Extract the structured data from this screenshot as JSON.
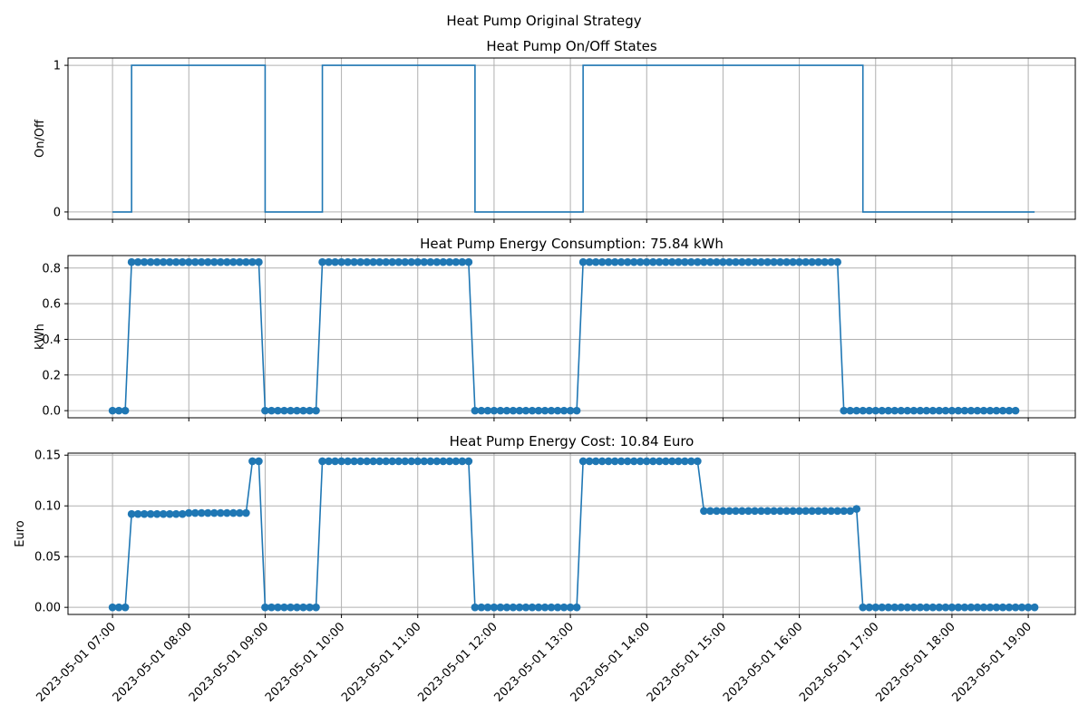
{
  "figure": {
    "suptitle": "Heat Pump Original Strategy"
  },
  "accent_color": "#1f77b4",
  "chart_data": [
    {
      "type": "line",
      "step": true,
      "markers": false,
      "title": "Heat Pump On/Off States",
      "xlabel": "",
      "ylabel": "On/Off",
      "ylim": [
        -0.05,
        1.05
      ],
      "y_ticks": [
        0,
        1
      ],
      "y_tick_labels": [
        "0",
        "1"
      ],
      "grid": true,
      "x_unit": "15 min interval",
      "x_start": "2023-05-01 07:00",
      "values": [
        0,
        0,
        0,
        1,
        1,
        1,
        1,
        1,
        1,
        1,
        1,
        1,
        1,
        1,
        1,
        1,
        1,
        1,
        1,
        1,
        1,
        1,
        1,
        1,
        0,
        0,
        0,
        0,
        0,
        0,
        0,
        0,
        0,
        1,
        1,
        1,
        1,
        1,
        1,
        1,
        1,
        1,
        1,
        1,
        1,
        1,
        1,
        1,
        1,
        1,
        1,
        1,
        1,
        1,
        1,
        1,
        1,
        0,
        0,
        0,
        0,
        0,
        0,
        0,
        0,
        0,
        0,
        0,
        0,
        0,
        0,
        0,
        0,
        0,
        1,
        1,
        1,
        1,
        1,
        1,
        1,
        1,
        1,
        1,
        1,
        1,
        1,
        1,
        1,
        1,
        1,
        1,
        1,
        1,
        1,
        1,
        1,
        1,
        1,
        1,
        1,
        1,
        1,
        1,
        1,
        1,
        1,
        1,
        1,
        1,
        1,
        1,
        1,
        1,
        1,
        1,
        1,
        1,
        0,
        0,
        0,
        0,
        0,
        0,
        0,
        0,
        0,
        0,
        0,
        0,
        0,
        0,
        0,
        0,
        0,
        0,
        0,
        0,
        0,
        0,
        0,
        0,
        0,
        0,
        0,
        0
      ]
    },
    {
      "type": "line",
      "markers": true,
      "title": "Heat Pump Energy Consumption: 75.84 kWh",
      "xlabel": "",
      "ylabel": "kWh",
      "ylim": [
        -0.04,
        0.87
      ],
      "y_ticks": [
        0.0,
        0.2,
        0.4,
        0.6,
        0.8
      ],
      "y_tick_labels": [
        "0.0",
        "0.2",
        "0.4",
        "0.6",
        "0.8"
      ],
      "grid": true,
      "x_start": "2023-05-01 07:00",
      "values": [
        0,
        0,
        0,
        0.8333,
        0.8333,
        0.8333,
        0.8333,
        0.8333,
        0.8333,
        0.8333,
        0.8333,
        0.8333,
        0.8333,
        0.8333,
        0.8333,
        0.8333,
        0.8333,
        0.8333,
        0.8333,
        0.8333,
        0.8333,
        0.8333,
        0.8333,
        0.8333,
        0,
        0,
        0,
        0,
        0,
        0,
        0,
        0,
        0,
        0.8333,
        0.8333,
        0.8333,
        0.8333,
        0.8333,
        0.8333,
        0.8333,
        0.8333,
        0.8333,
        0.8333,
        0.8333,
        0.8333,
        0.8333,
        0.8333,
        0.8333,
        0.8333,
        0.8333,
        0.8333,
        0.8333,
        0.8333,
        0.8333,
        0.8333,
        0.8333,
        0.8333,
        0,
        0,
        0,
        0,
        0,
        0,
        0,
        0,
        0,
        0,
        0,
        0,
        0,
        0,
        0,
        0,
        0,
        0.8333,
        0.8333,
        0.8333,
        0.8333,
        0.8333,
        0.8333,
        0.8333,
        0.8333,
        0.8333,
        0.8333,
        0.8333,
        0.8333,
        0.8333,
        0.8333,
        0.8333,
        0.8333,
        0.8333,
        0.8333,
        0.8333,
        0.8333,
        0.8333,
        0.8333,
        0.8333,
        0.8333,
        0.8333,
        0.8333,
        0.8333,
        0.8333,
        0.8333,
        0.8333,
        0.8333,
        0.8333,
        0.8333,
        0.8333,
        0.8333,
        0.8333,
        0.8333,
        0.8333,
        0.8333,
        0.8333,
        0.8333,
        0,
        0,
        0,
        0,
        0,
        0,
        0,
        0,
        0,
        0,
        0,
        0,
        0,
        0,
        0,
        0,
        0,
        0,
        0,
        0,
        0,
        0,
        0,
        0,
        0,
        0,
        0,
        0
      ]
    },
    {
      "type": "line",
      "markers": true,
      "title": "Heat Pump Energy Cost: 10.84 Euro",
      "xlabel": "",
      "ylabel": "Euro",
      "ylim": [
        -0.007,
        0.152
      ],
      "y_ticks": [
        0.0,
        0.05,
        0.1,
        0.15
      ],
      "y_tick_labels": [
        "0.00",
        "0.05",
        "0.10",
        "0.15"
      ],
      "grid": true,
      "x_start": "2023-05-01 07:00",
      "values": [
        0,
        0,
        0,
        0.092,
        0.092,
        0.092,
        0.092,
        0.092,
        0.092,
        0.092,
        0.092,
        0.092,
        0.093,
        0.093,
        0.093,
        0.093,
        0.093,
        0.093,
        0.093,
        0.093,
        0.093,
        0.093,
        0.144,
        0.144,
        0,
        0,
        0,
        0,
        0,
        0,
        0,
        0,
        0,
        0.144,
        0.144,
        0.144,
        0.144,
        0.144,
        0.144,
        0.144,
        0.144,
        0.144,
        0.144,
        0.144,
        0.144,
        0.144,
        0.144,
        0.144,
        0.144,
        0.144,
        0.144,
        0.144,
        0.144,
        0.144,
        0.144,
        0.144,
        0.144,
        0,
        0,
        0,
        0,
        0,
        0,
        0,
        0,
        0,
        0,
        0,
        0,
        0,
        0,
        0,
        0,
        0,
        0.144,
        0.144,
        0.144,
        0.144,
        0.144,
        0.144,
        0.144,
        0.144,
        0.144,
        0.144,
        0.144,
        0.144,
        0.144,
        0.144,
        0.144,
        0.144,
        0.144,
        0.144,
        0.144,
        0.095,
        0.095,
        0.095,
        0.095,
        0.095,
        0.095,
        0.095,
        0.095,
        0.095,
        0.095,
        0.095,
        0.095,
        0.095,
        0.095,
        0.095,
        0.095,
        0.095,
        0.095,
        0.095,
        0.095,
        0.095,
        0.095,
        0.095,
        0.095,
        0.097,
        0,
        0,
        0,
        0,
        0,
        0,
        0,
        0,
        0,
        0,
        0,
        0,
        0,
        0,
        0,
        0,
        0,
        0,
        0,
        0,
        0,
        0,
        0,
        0,
        0,
        0,
        0,
        0
      ]
    }
  ],
  "x_axis": {
    "range": [
      "2023-05-01 06:25",
      "2023-05-01 19:37"
    ],
    "tick_labels": [
      "2023-05-01 07:00",
      "2023-05-01 08:00",
      "2023-05-01 09:00",
      "2023-05-01 10:00",
      "2023-05-01 11:00",
      "2023-05-01 12:00",
      "2023-05-01 13:00",
      "2023-05-01 14:00",
      "2023-05-01 15:00",
      "2023-05-01 16:00",
      "2023-05-01 17:00",
      "2023-05-01 18:00",
      "2023-05-01 19:00"
    ],
    "tick_label_rotation_deg": 45
  }
}
